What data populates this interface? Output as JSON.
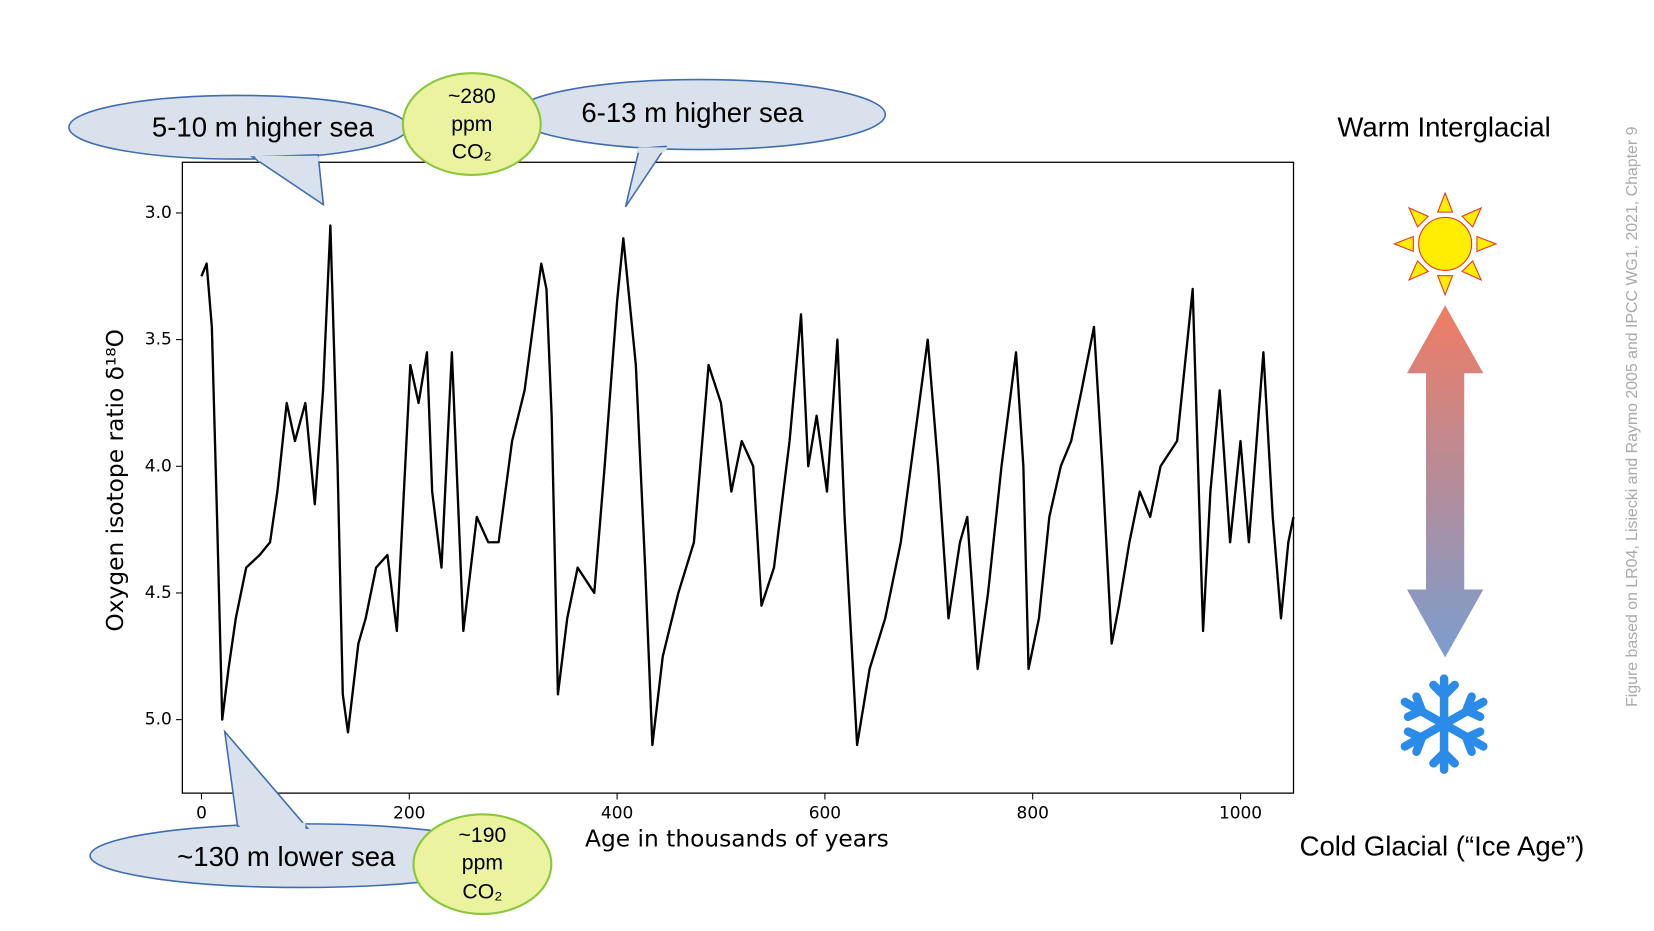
{
  "chart_data": {
    "type": "line",
    "x_label": "Age in thousands of years",
    "y_label": "Oxygen isotope ratio δ¹⁸O",
    "color": "#000000",
    "x": [
      0,
      5,
      10,
      15,
      20,
      26,
      33,
      43,
      56,
      66,
      73,
      82,
      90,
      100,
      109,
      117,
      124,
      131,
      136,
      141,
      151,
      158,
      168,
      179,
      188,
      201,
      209,
      217,
      222,
      231,
      241,
      252,
      265,
      276,
      286,
      299,
      311,
      327,
      332,
      337,
      343,
      352,
      362,
      378,
      388,
      400,
      406,
      418,
      427,
      434,
      444,
      459,
      474,
      488,
      500,
      510,
      520,
      531,
      539,
      551,
      566,
      577,
      584,
      592,
      602,
      612,
      619,
      631,
      643,
      658,
      673,
      686,
      699,
      709,
      719,
      730,
      737,
      747,
      757,
      770,
      784,
      791,
      796,
      806,
      816,
      827,
      837,
      847,
      859,
      867,
      876,
      883,
      893,
      903,
      913,
      923,
      939,
      954,
      964,
      971,
      980,
      990,
      1000,
      1008,
      1022,
      1031,
      1039,
      1046,
      1051
    ],
    "values": [
      3.25,
      3.2,
      3.45,
      4.2,
      5.0,
      4.8,
      4.6,
      4.4,
      4.35,
      4.3,
      4.1,
      3.75,
      3.9,
      3.75,
      4.15,
      3.7,
      3.05,
      4.0,
      4.9,
      5.05,
      4.7,
      4.6,
      4.4,
      4.35,
      4.65,
      3.6,
      3.75,
      3.55,
      4.1,
      4.4,
      3.55,
      4.65,
      4.2,
      4.3,
      4.3,
      3.9,
      3.7,
      3.2,
      3.3,
      3.8,
      4.9,
      4.6,
      4.4,
      4.5,
      4.0,
      3.35,
      3.1,
      3.6,
      4.4,
      5.1,
      4.75,
      4.5,
      4.3,
      3.6,
      3.75,
      4.1,
      3.9,
      4.0,
      4.55,
      4.4,
      3.9,
      3.4,
      4.0,
      3.8,
      4.1,
      3.5,
      4.2,
      5.1,
      4.8,
      4.6,
      4.3,
      3.9,
      3.5,
      4.0,
      4.6,
      4.3,
      4.2,
      4.8,
      4.5,
      4.0,
      3.55,
      4.0,
      4.8,
      4.6,
      4.2,
      4.0,
      3.9,
      3.7,
      3.45,
      4.0,
      4.7,
      4.55,
      4.3,
      4.1,
      4.2,
      4.0,
      3.9,
      3.3,
      4.65,
      4.1,
      3.7,
      4.3,
      3.9,
      4.3,
      3.55,
      4.2,
      4.6,
      4.3,
      4.2
    ],
    "xlim": [
      -18.4,
      1051
    ],
    "ylim": [
      5.29,
      2.8
    ],
    "xticks": [
      0,
      200,
      400,
      600,
      800,
      1000
    ],
    "yticks": [
      {
        "value": 3,
        "label": "3.0"
      },
      3.5,
      {
        "value": 4,
        "label": "4.0"
      },
      4.5,
      {
        "value": 5,
        "label": "5.0"
      }
    ]
  },
  "annotations": {
    "sea_high_1": "5-10 m higher sea",
    "sea_high_2": "6-13 m higher sea",
    "sea_low": "~130 m lower sea",
    "co2_high": [
      "~280",
      "ppm",
      "CO₂"
    ],
    "co2_low": [
      "~190",
      "ppm",
      "CO₂"
    ],
    "warm": "Warm Interglacial",
    "cold": "Cold Glacial (“Ice Age”)",
    "source": "Figure based on LR04, Lisiecki and Raymo 2005 and IPCC WG1, 2021, Chapter 9"
  }
}
